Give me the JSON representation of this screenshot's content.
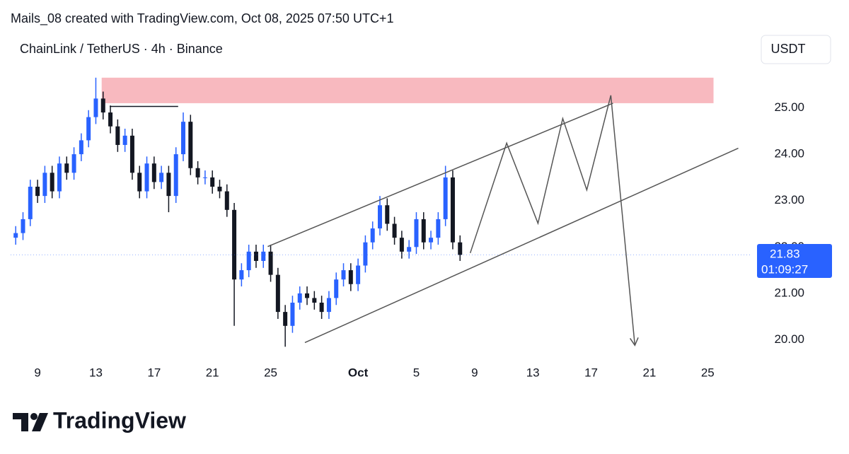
{
  "header": {
    "credit": "Mails_08 created with TradingView.com, Oct 08, 2025 07:50 UTC+1",
    "symbol": "ChainLink / TetherUS · 4h · Binance",
    "currency": "USDT"
  },
  "chart_data": {
    "type": "candlestick",
    "x": [
      7.5,
      8,
      8.5,
      9,
      9.5,
      10,
      10.5,
      11,
      11.5,
      12,
      12.5,
      13,
      13.5,
      14,
      14.5,
      15,
      15.5,
      16,
      16.5,
      17,
      17.5,
      18,
      18.5,
      19,
      19.5,
      20,
      20.5,
      21,
      21.5,
      22,
      22.5,
      23,
      23.5,
      24,
      24.5,
      25,
      25.5,
      26,
      26.5,
      27,
      27.5,
      28,
      28.5,
      29,
      29.5,
      30,
      30.5,
      31,
      31.5,
      32,
      32.5,
      33,
      33.5,
      34,
      34.5,
      35,
      35.5,
      36,
      36.5,
      37,
      37.5,
      38
    ],
    "open": [
      22.2,
      22.3,
      22.6,
      23.3,
      23.1,
      23.6,
      23.2,
      23.8,
      23.6,
      24.0,
      24.3,
      24.8,
      25.2,
      24.9,
      24.6,
      24.2,
      24.4,
      23.6,
      23.2,
      23.8,
      23.4,
      23.6,
      23.1,
      24.0,
      24.7,
      23.7,
      23.5,
      23.5,
      23.3,
      23.2,
      22.8,
      21.3,
      21.5,
      21.9,
      21.7,
      21.9,
      21.4,
      20.6,
      20.3,
      20.8,
      21.0,
      20.9,
      20.8,
      20.6,
      20.9,
      21.3,
      21.5,
      21.2,
      21.6,
      22.1,
      22.4,
      22.9,
      22.5,
      22.2,
      21.9,
      22.0,
      22.6,
      22.1,
      22.2,
      22.6,
      23.5,
      22.1
    ],
    "high": [
      22.45,
      22.75,
      23.45,
      23.45,
      23.75,
      23.75,
      23.95,
      23.95,
      24.15,
      24.45,
      24.95,
      25.65,
      25.35,
      25.05,
      24.75,
      24.55,
      24.55,
      23.75,
      23.95,
      23.95,
      23.75,
      23.75,
      24.15,
      24.9,
      24.85,
      23.85,
      23.65,
      23.65,
      23.45,
      23.35,
      22.95,
      21.65,
      22.05,
      22.05,
      22.05,
      22.05,
      21.55,
      20.75,
      20.95,
      21.15,
      21.15,
      21.05,
      20.95,
      21.05,
      21.45,
      21.65,
      21.65,
      21.75,
      22.25,
      22.55,
      23.1,
      23.05,
      22.65,
      22.35,
      22.15,
      22.75,
      22.75,
      22.35,
      22.75,
      23.75,
      23.65,
      22.25
    ],
    "low": [
      22.05,
      22.15,
      22.45,
      22.95,
      22.95,
      23.05,
      23.05,
      23.45,
      23.45,
      23.85,
      24.15,
      24.65,
      24.75,
      24.45,
      24.05,
      24.05,
      23.45,
      23.05,
      23.05,
      23.25,
      23.25,
      22.75,
      22.95,
      23.85,
      23.55,
      23.35,
      23.35,
      23.15,
      23.05,
      22.65,
      20.3,
      21.15,
      21.35,
      21.55,
      21.55,
      21.25,
      20.45,
      19.85,
      20.15,
      20.65,
      20.75,
      20.65,
      20.45,
      20.45,
      20.75,
      21.15,
      21.05,
      21.05,
      21.45,
      21.95,
      22.25,
      22.35,
      22.05,
      21.75,
      21.75,
      21.85,
      21.95,
      21.95,
      22.05,
      22.45,
      21.95,
      21.7
    ],
    "close": [
      22.3,
      22.6,
      23.3,
      23.1,
      23.6,
      23.2,
      23.8,
      23.6,
      24.0,
      24.3,
      24.8,
      25.2,
      24.9,
      24.6,
      24.2,
      24.4,
      23.6,
      23.2,
      23.8,
      23.4,
      23.6,
      23.1,
      24.0,
      24.7,
      23.7,
      23.5,
      23.5,
      23.3,
      23.2,
      22.8,
      21.3,
      21.5,
      21.9,
      21.7,
      21.9,
      21.4,
      20.6,
      20.3,
      20.8,
      21.0,
      20.9,
      20.8,
      20.6,
      20.9,
      21.3,
      21.5,
      21.2,
      21.6,
      22.1,
      22.4,
      22.9,
      22.5,
      22.2,
      21.9,
      22.0,
      22.6,
      22.1,
      22.2,
      22.6,
      23.5,
      22.1,
      21.83
    ],
    "up_color": "#2962ff",
    "down_color": "#131722",
    "xlim": [
      7.15,
      57.9
    ],
    "ylim": [
      19.55,
      25.8
    ],
    "xticks": [
      9,
      13,
      17,
      21,
      25,
      {
        "value": 31,
        "label": "Oct"
      },
      {
        "value": 35,
        "label": "5"
      },
      {
        "value": 39,
        "label": "9"
      },
      {
        "value": 43,
        "label": "13"
      },
      {
        "value": 47,
        "label": "17"
      },
      {
        "value": 51,
        "label": "21"
      },
      {
        "value": 55,
        "label": "25"
      }
    ],
    "yticks": [
      {
        "value": 20,
        "label": "20.00"
      },
      {
        "value": 21,
        "label": "21.00"
      },
      {
        "value": 22,
        "label": "22.00"
      },
      {
        "value": 23,
        "label": "23.00"
      },
      {
        "value": 24,
        "label": "24.00"
      },
      {
        "value": 25,
        "label": "25.00"
      }
    ],
    "last_price": {
      "value": 21.83,
      "countdown": "01:09:27",
      "color": "#2962ff"
    },
    "zone": {
      "x": [
        13.4,
        55.4
      ],
      "y": [
        25.1,
        25.65
      ],
      "color": "#f8b9bf"
    },
    "lines": [
      {
        "x": [
          13.95,
          18.65
        ],
        "y": [
          25.03,
          25.03
        ],
        "color": "#131722"
      },
      {
        "x": [
          24.8,
          48.5
        ],
        "y": [
          22.01,
          25.1
        ],
        "color": "#555"
      },
      {
        "x": [
          27.35,
          57.1
        ],
        "y": [
          19.94,
          24.13
        ],
        "color": "#555"
      },
      {
        "x": [
          38.7,
          41.2,
          43.35,
          45.05,
          46.7,
          48.35,
          50.0
        ],
        "y": [
          21.87,
          24.24,
          22.51,
          24.77,
          23.23,
          25.27,
          19.88
        ],
        "color": "#555",
        "arrow": true
      }
    ]
  },
  "footer": {
    "brand": "TradingView"
  }
}
